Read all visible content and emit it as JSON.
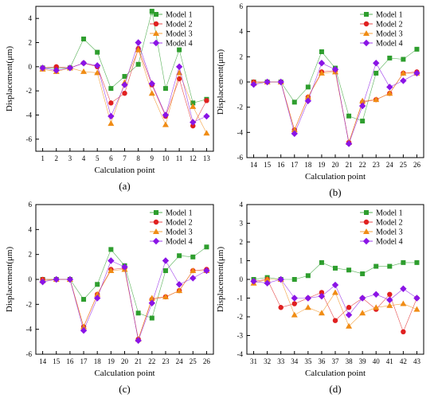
{
  "ylabel": "Displacement(μm)",
  "xlabel": "Calculation point",
  "legend": [
    "Model 1",
    "Model 2",
    "Model 3",
    "Model 4"
  ],
  "colors": [
    "#2e9e2e",
    "#e02020",
    "#f08c14",
    "#8a14e6"
  ],
  "chart_data": [
    {
      "type": "line",
      "panel": "(a)",
      "legend_position": "top-right",
      "ylim": [
        -7,
        5
      ],
      "yticks": [
        -6,
        -4,
        -2,
        0,
        2,
        4
      ],
      "x": [
        1,
        2,
        3,
        4,
        5,
        6,
        7,
        8,
        9,
        10,
        11,
        12,
        13
      ],
      "series": [
        {
          "name": "Model 1",
          "values": [
            -0.1,
            -0.1,
            -0.1,
            2.3,
            1.2,
            -1.8,
            -0.8,
            0.2,
            4.6,
            -1.8,
            1.4,
            -3.0,
            -2.7
          ]
        },
        {
          "name": "Model 2",
          "values": [
            -0.1,
            0.0,
            -0.1,
            0.3,
            0.0,
            -3.0,
            -2.2,
            1.5,
            -1.5,
            -4.1,
            -1.0,
            -4.9,
            -2.8
          ]
        },
        {
          "name": "Model 3",
          "values": [
            -0.2,
            -0.4,
            -0.1,
            -0.4,
            -0.5,
            -4.7,
            -1.3,
            1.4,
            -2.2,
            -4.8,
            -0.5,
            -3.3,
            -5.5
          ]
        },
        {
          "name": "Model 4",
          "values": [
            -0.1,
            -0.3,
            -0.1,
            0.3,
            0.1,
            -4.1,
            -1.5,
            2.0,
            -1.4,
            -4.0,
            0.0,
            -4.6,
            -4.1
          ]
        }
      ]
    },
    {
      "type": "line",
      "panel": "(b)",
      "legend_position": "top-right",
      "ylim": [
        -6,
        6
      ],
      "yticks": [
        -6,
        -4,
        -2,
        0,
        2,
        4,
        6
      ],
      "x": [
        14,
        15,
        16,
        17,
        18,
        19,
        20,
        21,
        22,
        23,
        24,
        25,
        26
      ],
      "series": [
        {
          "name": "Model 1",
          "values": [
            0.0,
            0.0,
            0.0,
            -1.6,
            -0.4,
            2.4,
            1.1,
            -2.7,
            -3.1,
            0.7,
            1.9,
            1.8,
            2.6
          ]
        },
        {
          "name": "Model 2",
          "values": [
            0.0,
            0.0,
            0.0,
            -3.8,
            -1.2,
            0.8,
            0.9,
            -4.8,
            -1.6,
            -1.4,
            -0.9,
            0.7,
            0.8
          ]
        },
        {
          "name": "Model 3",
          "values": [
            -0.1,
            0.0,
            0.0,
            -3.8,
            -1.2,
            0.7,
            0.8,
            -4.8,
            -1.5,
            -1.4,
            -0.9,
            0.7,
            0.7
          ]
        },
        {
          "name": "Model 4",
          "values": [
            -0.2,
            0.0,
            0.0,
            -4.1,
            -1.5,
            1.5,
            1.0,
            -4.9,
            -1.9,
            1.5,
            -0.4,
            0.1,
            0.7
          ]
        }
      ]
    },
    {
      "type": "line",
      "panel": "(c)",
      "legend_position": "top-right",
      "ylim": [
        -6,
        6
      ],
      "yticks": [
        -6,
        -4,
        -2,
        0,
        2,
        4,
        6
      ],
      "x": [
        14,
        15,
        16,
        17,
        18,
        19,
        20,
        21,
        22,
        23,
        24,
        25,
        26
      ],
      "series": [
        {
          "name": "Model 1",
          "values": [
            0.0,
            0.0,
            0.0,
            -1.6,
            -0.4,
            2.4,
            1.1,
            -2.7,
            -3.1,
            0.7,
            1.9,
            1.8,
            2.6
          ]
        },
        {
          "name": "Model 2",
          "values": [
            0.0,
            0.0,
            0.0,
            -3.8,
            -1.2,
            0.8,
            0.9,
            -4.8,
            -1.6,
            -1.4,
            -0.9,
            0.7,
            0.8
          ]
        },
        {
          "name": "Model 3",
          "values": [
            -0.1,
            0.0,
            0.0,
            -3.8,
            -1.2,
            0.7,
            0.8,
            -4.8,
            -1.5,
            -1.4,
            -0.9,
            0.7,
            0.7
          ]
        },
        {
          "name": "Model 4",
          "values": [
            -0.2,
            0.0,
            0.0,
            -4.1,
            -1.5,
            1.5,
            1.0,
            -4.9,
            -1.9,
            1.5,
            -0.4,
            0.1,
            0.7
          ]
        }
      ]
    },
    {
      "type": "line",
      "panel": "(d)",
      "legend_position": "top-right",
      "ylim": [
        -4,
        4
      ],
      "yticks": [
        -4,
        -3,
        -2,
        -1,
        0,
        1,
        2,
        3,
        4
      ],
      "x": [
        31,
        32,
        33,
        34,
        35,
        36,
        37,
        38,
        39,
        40,
        41,
        42,
        43
      ],
      "series": [
        {
          "name": "Model 1",
          "values": [
            0.0,
            0.1,
            0.0,
            0.0,
            0.2,
            0.9,
            0.6,
            0.5,
            0.3,
            0.7,
            0.7,
            0.9,
            0.9
          ]
        },
        {
          "name": "Model 2",
          "values": [
            -0.1,
            0.0,
            -1.5,
            -1.3,
            -1.0,
            -0.7,
            -2.2,
            -1.5,
            -1.0,
            -1.6,
            -0.8,
            -2.8,
            -1.0
          ]
        },
        {
          "name": "Model 3",
          "values": [
            -0.2,
            0.0,
            0.0,
            -1.9,
            -1.5,
            -1.8,
            -0.7,
            -2.5,
            -1.8,
            -1.5,
            -1.4,
            -1.3,
            -1.6
          ]
        },
        {
          "name": "Model 4",
          "values": [
            -0.1,
            -0.2,
            0.0,
            -1.0,
            -1.0,
            -0.9,
            -0.3,
            -1.9,
            -1.0,
            -0.8,
            -1.1,
            -0.5,
            -1.0
          ]
        }
      ]
    }
  ]
}
